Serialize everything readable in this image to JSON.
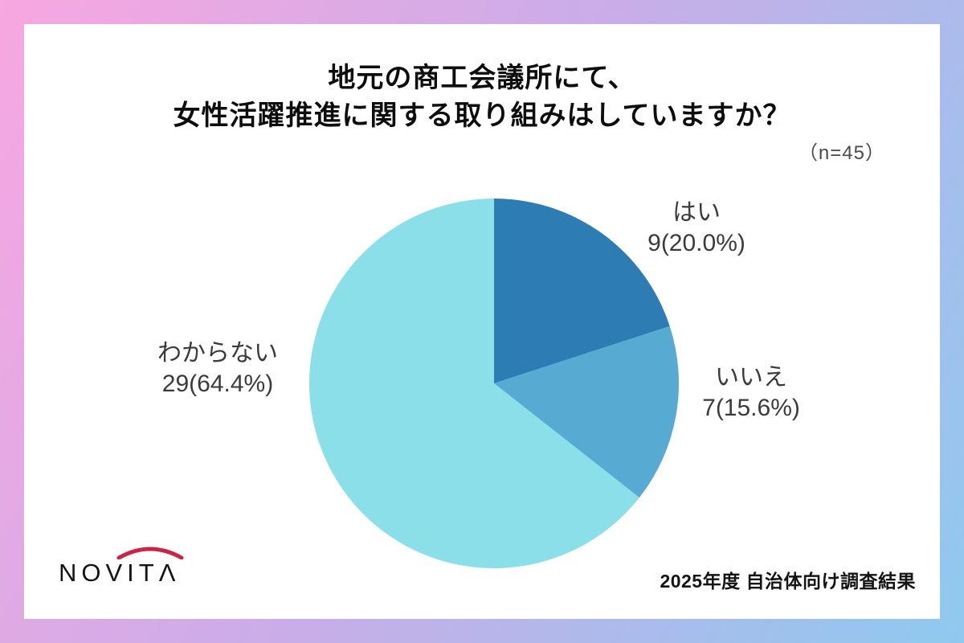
{
  "header": {
    "title_lines": [
      "地元の商工会議所にて、",
      "女性活躍推進に関する取り組みはしていますか？"
    ],
    "sample_size": "（n=45）"
  },
  "chart_data": {
    "type": "pie",
    "title": "地元の商工会議所にて、女性活躍推進に関する取り組みはしていますか？",
    "n": 45,
    "start_angle_deg": 0,
    "direction": "clockwise",
    "legend_position": "labels-outside",
    "slices": [
      {
        "label": "はい",
        "count": 9,
        "percent": 20.0,
        "value_label": "9(20.0%)",
        "color": "#2e7cb4"
      },
      {
        "label": "いいえ",
        "count": 7,
        "percent": 15.6,
        "value_label": "7(15.6%)",
        "color": "#57abd2"
      },
      {
        "label": "わからない",
        "count": 29,
        "percent": 64.4,
        "value_label": "29(64.4%)",
        "color": "#8bdfe9"
      }
    ]
  },
  "footer": {
    "logo_text": "NOVITΛ",
    "note": "2025年度 自治体向け調査結果"
  },
  "colors": {
    "bg_gradient_start": "#f8a7e0",
    "bg_gradient_mid": "#c9ade8",
    "bg_gradient_end": "#8ec9ee",
    "card_bg": "#ffffff",
    "slice_yes": "#2e7cb4",
    "slice_no": "#57abd2",
    "slice_unknown": "#8bdfe9",
    "logo_arc": "#cc2346"
  }
}
